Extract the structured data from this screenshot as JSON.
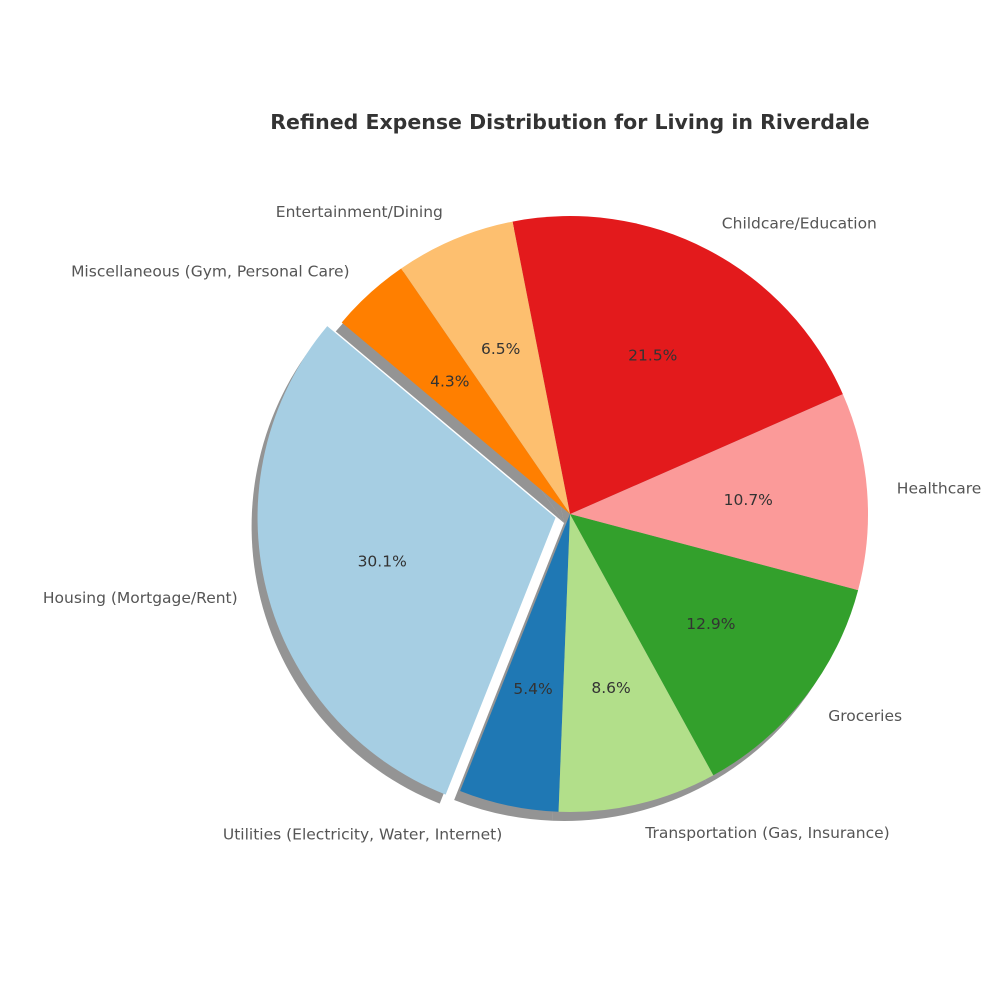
{
  "chart_data": {
    "type": "pie",
    "title": "Refined Expense Distribution for Living in Riverdale",
    "slices": [
      {
        "label": "Housing (Mortgage/Rent)",
        "value": 30.1,
        "pct_label": "30.1%",
        "color": "#a6cee3",
        "explode": true
      },
      {
        "label": "Utilities (Electricity, Water, Internet)",
        "value": 5.4,
        "pct_label": "5.4%",
        "color": "#1f78b4",
        "explode": false
      },
      {
        "label": "Transportation (Gas, Insurance)",
        "value": 8.6,
        "pct_label": "8.6%",
        "color": "#b2df8a",
        "explode": false
      },
      {
        "label": "Groceries",
        "value": 12.9,
        "pct_label": "12.9%",
        "color": "#33a02c",
        "explode": false
      },
      {
        "label": "Healthcare",
        "value": 10.7,
        "pct_label": "10.7%",
        "color": "#fb9a99",
        "explode": false
      },
      {
        "label": "Childcare/Education",
        "value": 21.5,
        "pct_label": "21.5%",
        "color": "#e31a1c",
        "explode": false
      },
      {
        "label": "Entertainment/Dining",
        "value": 6.5,
        "pct_label": "6.5%",
        "color": "#fdbf6f",
        "explode": false
      },
      {
        "label": "Miscellaneous (Gym, Personal Care)",
        "value": 4.3,
        "pct_label": "4.3%",
        "color": "#ff7f00",
        "explode": false
      }
    ],
    "shadow": true,
    "start_angle_deg": 140,
    "direction": "counterclockwise"
  }
}
